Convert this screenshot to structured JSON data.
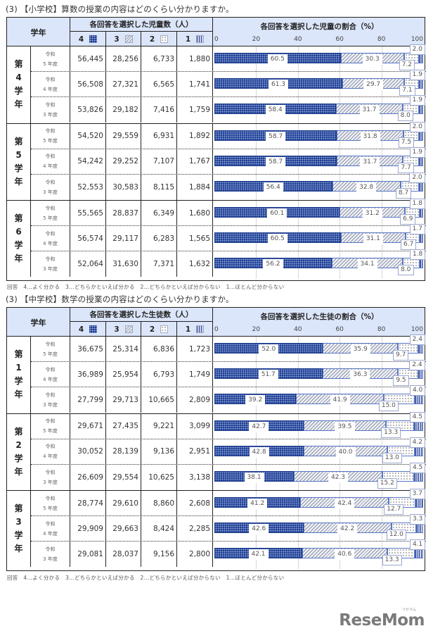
{
  "sections": [
    {
      "title": "(3) 【小学校】算数の授業の内容はどのくらい分かりますか。",
      "header": {
        "grade": "学年",
        "count_header": "各回答を選択した児童数（人）",
        "pct_header": "各回答を選択した児童の割合（%）",
        "answer_codes": [
          "4",
          "3",
          "2",
          "1"
        ],
        "axis_ticks": [
          "0",
          "20",
          "40",
          "60",
          "80",
          "100"
        ]
      },
      "groups": [
        {
          "grade_chars": [
            "第",
            "4",
            "学",
            "年"
          ],
          "rows": [
            {
              "era": "令和",
              "year": "5 年度",
              "counts": [
                "56,445",
                "28,256",
                "6,733",
                "1,880"
              ],
              "pct": [
                60.5,
                30.3,
                7.2,
                2.0
              ]
            },
            {
              "era": "令和",
              "year": "4 年度",
              "counts": [
                "56,508",
                "27,321",
                "6,565",
                "1,741"
              ],
              "pct": [
                61.3,
                29.7,
                7.1,
                1.9
              ]
            },
            {
              "era": "令和",
              "year": "3 年度",
              "counts": [
                "53,826",
                "29,182",
                "7,416",
                "1,759"
              ],
              "pct": [
                58.4,
                31.7,
                8.0,
                1.9
              ]
            }
          ]
        },
        {
          "grade_chars": [
            "第",
            "5",
            "学",
            "年"
          ],
          "rows": [
            {
              "era": "令和",
              "year": "5 年度",
              "counts": [
                "54,520",
                "29,559",
                "6,931",
                "1,892"
              ],
              "pct": [
                58.7,
                31.8,
                7.5,
                2.0
              ]
            },
            {
              "era": "令和",
              "year": "4 年度",
              "counts": [
                "54,242",
                "29,252",
                "7,107",
                "1,767"
              ],
              "pct": [
                58.7,
                31.7,
                7.7,
                1.9
              ]
            },
            {
              "era": "令和",
              "year": "3 年度",
              "counts": [
                "52,553",
                "30,583",
                "8,115",
                "1,884"
              ],
              "pct": [
                56.4,
                32.8,
                8.7,
                2.0
              ]
            }
          ]
        },
        {
          "grade_chars": [
            "第",
            "6",
            "学",
            "年"
          ],
          "rows": [
            {
              "era": "令和",
              "year": "5 年度",
              "counts": [
                "55,565",
                "28,837",
                "6,349",
                "1,680"
              ],
              "pct": [
                60.1,
                31.2,
                6.9,
                1.8
              ]
            },
            {
              "era": "令和",
              "year": "4 年度",
              "counts": [
                "56,574",
                "29,117",
                "6,283",
                "1,565"
              ],
              "pct": [
                60.5,
                31.1,
                6.7,
                1.7
              ]
            },
            {
              "era": "令和",
              "year": "3 年度",
              "counts": [
                "52,064",
                "31,630",
                "7,371",
                "1,632"
              ],
              "pct": [
                56.2,
                34.1,
                8.0,
                1.8
              ]
            }
          ]
        }
      ],
      "footnote": "回答　4…よく分かる　3…どちらかといえば分かる　2…どちらかといえば分からない　1…ほとんど分からない"
    },
    {
      "title": "(3) 【中学校】数学の授業の内容はどのくらい分かりますか。",
      "header": {
        "grade": "学年",
        "count_header": "各回答を選択した生徒数（人）",
        "pct_header": "各回答を選択した生徒の割合（%）",
        "answer_codes": [
          "4",
          "3",
          "2",
          "1"
        ],
        "axis_ticks": [
          "0",
          "20",
          "40",
          "60",
          "80",
          "100"
        ]
      },
      "groups": [
        {
          "grade_chars": [
            "第",
            "1",
            "学",
            "年"
          ],
          "rows": [
            {
              "era": "令和",
              "year": "5 年度",
              "counts": [
                "36,675",
                "25,314",
                "6,836",
                "1,723"
              ],
              "pct": [
                52.0,
                35.9,
                9.7,
                2.4
              ]
            },
            {
              "era": "令和",
              "year": "4 年度",
              "counts": [
                "36,989",
                "25,954",
                "6,793",
                "1,749"
              ],
              "pct": [
                51.7,
                36.3,
                9.5,
                2.4
              ]
            },
            {
              "era": "令和",
              "year": "3 年度",
              "counts": [
                "27,799",
                "29,713",
                "10,665",
                "2,809"
              ],
              "pct": [
                39.2,
                41.9,
                15.0,
                4.0
              ]
            }
          ]
        },
        {
          "grade_chars": [
            "第",
            "2",
            "学",
            "年"
          ],
          "rows": [
            {
              "era": "令和",
              "year": "5 年度",
              "counts": [
                "29,671",
                "27,435",
                "9,221",
                "3,099"
              ],
              "pct": [
                42.7,
                39.5,
                13.3,
                4.5
              ]
            },
            {
              "era": "令和",
              "year": "4 年度",
              "counts": [
                "30,052",
                "28,139",
                "9,136",
                "2,951"
              ],
              "pct": [
                42.8,
                40.0,
                13.0,
                4.2
              ]
            },
            {
              "era": "令和",
              "year": "3 年度",
              "counts": [
                "26,609",
                "29,554",
                "10,625",
                "3,138"
              ],
              "pct": [
                38.1,
                42.3,
                15.2,
                4.5
              ]
            }
          ]
        },
        {
          "grade_chars": [
            "第",
            "3",
            "学",
            "年"
          ],
          "rows": [
            {
              "era": "令和",
              "year": "5 年度",
              "counts": [
                "28,774",
                "29,610",
                "8,860",
                "2,608"
              ],
              "pct": [
                41.2,
                42.4,
                12.7,
                3.7
              ]
            },
            {
              "era": "令和",
              "year": "4 年度",
              "counts": [
                "29,909",
                "29,663",
                "8,424",
                "2,285"
              ],
              "pct": [
                42.6,
                42.2,
                12.0,
                3.3
              ]
            },
            {
              "era": "令和",
              "year": "3 年度",
              "counts": [
                "29,081",
                "28,037",
                "9,156",
                "2,800"
              ],
              "pct": [
                42.1,
                40.6,
                13.3,
                4.1
              ]
            }
          ]
        }
      ],
      "footnote": "回答　4…よく分かる　3…どちらかといえば分かる　2…どちらかといえば分からない　1…ほとんど分からない"
    }
  ],
  "logo": {
    "text": "ReseMom",
    "kana": "リセマム"
  },
  "colors": {
    "answer4": "#1f3e8f",
    "header_bg": "#dce6fa",
    "label_border": "#9aa7cf",
    "connector": "#c020c0"
  },
  "chart_data": [
    {
      "type": "bar",
      "orientation": "horizontal-stacked-100",
      "title": "(3) 【小学校】算数の授業の内容はどのくらい分かりますか。",
      "xlabel": "各回答を選択した児童の割合（%）",
      "xlim": [
        0,
        100
      ],
      "x_ticks": [
        0,
        20,
        40,
        60,
        80,
        100
      ],
      "legend": [
        "4…よく分かる",
        "3…どちらかといえば分かる",
        "2…どちらかといえば分からない",
        "1…ほとんど分からない"
      ],
      "categories": [
        "第4学年 令和5年度",
        "第4学年 令和4年度",
        "第4学年 令和3年度",
        "第5学年 令和5年度",
        "第5学年 令和4年度",
        "第5学年 令和3年度",
        "第6学年 令和5年度",
        "第6学年 令和4年度",
        "第6学年 令和3年度"
      ],
      "series": [
        {
          "name": "4",
          "values": [
            60.5,
            61.3,
            58.4,
            58.7,
            58.7,
            56.4,
            60.1,
            60.5,
            56.2
          ]
        },
        {
          "name": "3",
          "values": [
            30.3,
            29.7,
            31.7,
            31.8,
            31.7,
            32.8,
            31.2,
            31.1,
            34.1
          ]
        },
        {
          "name": "2",
          "values": [
            7.2,
            7.1,
            8.0,
            7.5,
            7.7,
            8.7,
            6.9,
            6.7,
            8.0
          ]
        },
        {
          "name": "1",
          "values": [
            2.0,
            1.9,
            1.9,
            2.0,
            1.9,
            2.0,
            1.8,
            1.7,
            1.8
          ]
        }
      ],
      "counts": {
        "4": [
          56445,
          56508,
          53826,
          54520,
          54242,
          52553,
          55565,
          56574,
          52064
        ],
        "3": [
          28256,
          27321,
          29182,
          29559,
          29252,
          30583,
          28837,
          29117,
          31630
        ],
        "2": [
          6733,
          6565,
          7416,
          6931,
          7107,
          8115,
          6349,
          6283,
          7371
        ],
        "1": [
          1880,
          1741,
          1759,
          1892,
          1767,
          1884,
          1680,
          1565,
          1632
        ]
      }
    },
    {
      "type": "bar",
      "orientation": "horizontal-stacked-100",
      "title": "(3) 【中学校】数学の授業の内容はどのくらい分かりますか。",
      "xlabel": "各回答を選択した生徒の割合（%）",
      "xlim": [
        0,
        100
      ],
      "x_ticks": [
        0,
        20,
        40,
        60,
        80,
        100
      ],
      "legend": [
        "4…よく分かる",
        "3…どちらかといえば分かる",
        "2…どちらかといえば分からない",
        "1…ほとんど分からない"
      ],
      "categories": [
        "第1学年 令和5年度",
        "第1学年 令和4年度",
        "第1学年 令和3年度",
        "第2学年 令和5年度",
        "第2学年 令和4年度",
        "第2学年 令和3年度",
        "第3学年 令和5年度",
        "第3学年 令和4年度",
        "第3学年 令和3年度"
      ],
      "series": [
        {
          "name": "4",
          "values": [
            52.0,
            51.7,
            39.2,
            42.7,
            42.8,
            38.1,
            41.2,
            42.6,
            42.1
          ]
        },
        {
          "name": "3",
          "values": [
            35.9,
            36.3,
            41.9,
            39.5,
            40.0,
            42.3,
            42.4,
            42.2,
            40.6
          ]
        },
        {
          "name": "2",
          "values": [
            9.7,
            9.5,
            15.0,
            13.3,
            13.0,
            15.2,
            12.7,
            12.0,
            13.3
          ]
        },
        {
          "name": "1",
          "values": [
            2.4,
            2.4,
            4.0,
            4.5,
            4.2,
            4.5,
            3.7,
            3.3,
            4.1
          ]
        }
      ],
      "counts": {
        "4": [
          36675,
          36989,
          27799,
          29671,
          30052,
          26609,
          28774,
          29909,
          29081
        ],
        "3": [
          25314,
          25954,
          29713,
          27435,
          28139,
          29554,
          29610,
          29663,
          28037
        ],
        "2": [
          6836,
          6793,
          10665,
          9221,
          9136,
          10625,
          8860,
          8424,
          9156
        ],
        "1": [
          1723,
          1749,
          2809,
          3099,
          2951,
          3138,
          2608,
          2285,
          2800
        ]
      }
    }
  ]
}
